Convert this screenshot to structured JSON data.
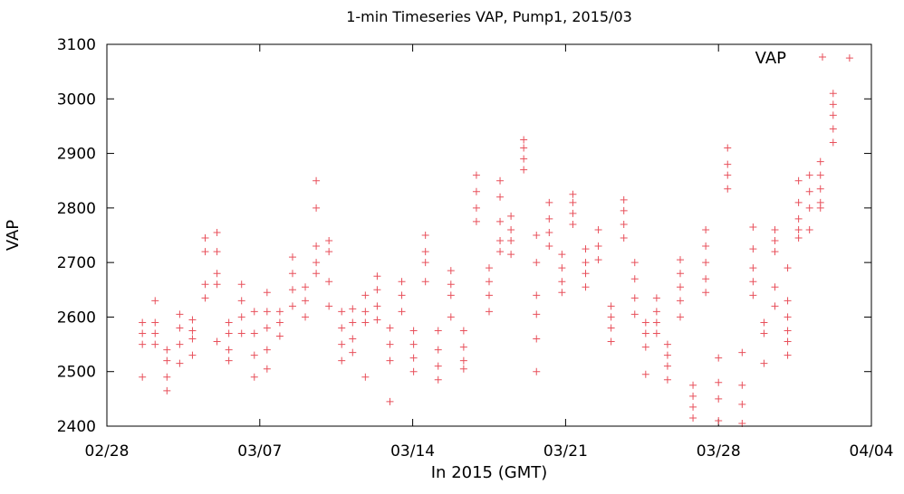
{
  "chart_data": {
    "type": "scatter",
    "title": "1-min Timeseries VAP, Pump1, 2015/03",
    "xlabel": "In 2015 (GMT)",
    "ylabel": "VAP",
    "legend": {
      "position": "top-right",
      "entries": [
        {
          "label": "VAP",
          "marker": "+",
          "color": "#e8505b"
        }
      ]
    },
    "series_color": "#e8505b",
    "grid": false,
    "xlim": [
      "2015-02-28",
      "2015-04-04"
    ],
    "ylim": [
      2400,
      3100
    ],
    "x_ticks": [
      "02/28",
      "03/07",
      "03/14",
      "03/21",
      "03/28",
      "04/04"
    ],
    "y_ticks": [
      "2400",
      "2500",
      "2600",
      "2700",
      "2800",
      "2900",
      "3000",
      "3100"
    ],
    "series": [
      {
        "name": "VAP",
        "points": [
          [
            "2015-03-01 15:00",
            2590
          ],
          [
            "2015-03-01 15:00",
            2570
          ],
          [
            "2015-03-01 15:00",
            2550
          ],
          [
            "2015-03-01 15:00",
            2490
          ],
          [
            "2015-03-02 05:00",
            2630
          ],
          [
            "2015-03-02 05:00",
            2590
          ],
          [
            "2015-03-02 05:00",
            2570
          ],
          [
            "2015-03-02 05:00",
            2550
          ],
          [
            "2015-03-02 18:00",
            2540
          ],
          [
            "2015-03-02 18:00",
            2520
          ],
          [
            "2015-03-02 18:00",
            2490
          ],
          [
            "2015-03-02 18:00",
            2465
          ],
          [
            "2015-03-03 08:00",
            2605
          ],
          [
            "2015-03-03 08:00",
            2580
          ],
          [
            "2015-03-03 08:00",
            2550
          ],
          [
            "2015-03-03 08:00",
            2515
          ],
          [
            "2015-03-03 22:00",
            2595
          ],
          [
            "2015-03-03 22:00",
            2575
          ],
          [
            "2015-03-03 22:00",
            2560
          ],
          [
            "2015-03-03 22:00",
            2530
          ],
          [
            "2015-03-04 12:00",
            2745
          ],
          [
            "2015-03-04 12:00",
            2720
          ],
          [
            "2015-03-04 12:00",
            2660
          ],
          [
            "2015-03-04 12:00",
            2635
          ],
          [
            "2015-03-05 01:00",
            2755
          ],
          [
            "2015-03-05 01:00",
            2720
          ],
          [
            "2015-03-05 01:00",
            2680
          ],
          [
            "2015-03-05 01:00",
            2660
          ],
          [
            "2015-03-05 01:00",
            2555
          ],
          [
            "2015-03-05 14:00",
            2590
          ],
          [
            "2015-03-05 14:00",
            2570
          ],
          [
            "2015-03-05 14:00",
            2540
          ],
          [
            "2015-03-05 14:00",
            2520
          ],
          [
            "2015-03-06 04:00",
            2660
          ],
          [
            "2015-03-06 04:00",
            2630
          ],
          [
            "2015-03-06 04:00",
            2600
          ],
          [
            "2015-03-06 04:00",
            2570
          ],
          [
            "2015-03-06 18:00",
            2610
          ],
          [
            "2015-03-06 18:00",
            2570
          ],
          [
            "2015-03-06 18:00",
            2530
          ],
          [
            "2015-03-06 18:00",
            2490
          ],
          [
            "2015-03-07 08:00",
            2645
          ],
          [
            "2015-03-07 08:00",
            2610
          ],
          [
            "2015-03-07 08:00",
            2580
          ],
          [
            "2015-03-07 08:00",
            2540
          ],
          [
            "2015-03-07 08:00",
            2505
          ],
          [
            "2015-03-07 22:00",
            2610
          ],
          [
            "2015-03-07 22:00",
            2590
          ],
          [
            "2015-03-07 22:00",
            2565
          ],
          [
            "2015-03-08 12:00",
            2710
          ],
          [
            "2015-03-08 12:00",
            2680
          ],
          [
            "2015-03-08 12:00",
            2650
          ],
          [
            "2015-03-08 12:00",
            2620
          ],
          [
            "2015-03-09 02:00",
            2655
          ],
          [
            "2015-03-09 02:00",
            2630
          ],
          [
            "2015-03-09 02:00",
            2600
          ],
          [
            "2015-03-09 14:00",
            2850
          ],
          [
            "2015-03-09 14:00",
            2800
          ],
          [
            "2015-03-09 14:00",
            2730
          ],
          [
            "2015-03-09 14:00",
            2700
          ],
          [
            "2015-03-09 14:00",
            2680
          ],
          [
            "2015-03-10 04:00",
            2740
          ],
          [
            "2015-03-10 04:00",
            2720
          ],
          [
            "2015-03-10 04:00",
            2665
          ],
          [
            "2015-03-10 04:00",
            2620
          ],
          [
            "2015-03-10 18:00",
            2610
          ],
          [
            "2015-03-10 18:00",
            2580
          ],
          [
            "2015-03-10 18:00",
            2550
          ],
          [
            "2015-03-10 18:00",
            2520
          ],
          [
            "2015-03-11 06:00",
            2615
          ],
          [
            "2015-03-11 06:00",
            2590
          ],
          [
            "2015-03-11 06:00",
            2560
          ],
          [
            "2015-03-11 06:00",
            2535
          ],
          [
            "2015-03-11 20:00",
            2640
          ],
          [
            "2015-03-11 20:00",
            2610
          ],
          [
            "2015-03-11 20:00",
            2590
          ],
          [
            "2015-03-11 20:00",
            2490
          ],
          [
            "2015-03-12 09:00",
            2675
          ],
          [
            "2015-03-12 09:00",
            2650
          ],
          [
            "2015-03-12 09:00",
            2620
          ],
          [
            "2015-03-12 09:00",
            2595
          ],
          [
            "2015-03-12 23:00",
            2580
          ],
          [
            "2015-03-12 23:00",
            2550
          ],
          [
            "2015-03-12 23:00",
            2520
          ],
          [
            "2015-03-12 23:00",
            2445
          ],
          [
            "2015-03-13 12:00",
            2665
          ],
          [
            "2015-03-13 12:00",
            2640
          ],
          [
            "2015-03-13 12:00",
            2610
          ],
          [
            "2015-03-14 01:00",
            2575
          ],
          [
            "2015-03-14 01:00",
            2550
          ],
          [
            "2015-03-14 01:00",
            2525
          ],
          [
            "2015-03-14 01:00",
            2500
          ],
          [
            "2015-03-14 14:00",
            2750
          ],
          [
            "2015-03-14 14:00",
            2720
          ],
          [
            "2015-03-14 14:00",
            2700
          ],
          [
            "2015-03-14 14:00",
            2665
          ],
          [
            "2015-03-15 04:00",
            2575
          ],
          [
            "2015-03-15 04:00",
            2540
          ],
          [
            "2015-03-15 04:00",
            2510
          ],
          [
            "2015-03-15 04:00",
            2485
          ],
          [
            "2015-03-15 18:00",
            2685
          ],
          [
            "2015-03-15 18:00",
            2660
          ],
          [
            "2015-03-15 18:00",
            2640
          ],
          [
            "2015-03-15 18:00",
            2600
          ],
          [
            "2015-03-16 08:00",
            2575
          ],
          [
            "2015-03-16 08:00",
            2545
          ],
          [
            "2015-03-16 08:00",
            2520
          ],
          [
            "2015-03-16 08:00",
            2505
          ],
          [
            "2015-03-16 22:00",
            2860
          ],
          [
            "2015-03-16 22:00",
            2830
          ],
          [
            "2015-03-16 22:00",
            2800
          ],
          [
            "2015-03-16 22:00",
            2775
          ],
          [
            "2015-03-17 12:00",
            2690
          ],
          [
            "2015-03-17 12:00",
            2665
          ],
          [
            "2015-03-17 12:00",
            2640
          ],
          [
            "2015-03-17 12:00",
            2610
          ],
          [
            "2015-03-18 00:00",
            2850
          ],
          [
            "2015-03-18 00:00",
            2820
          ],
          [
            "2015-03-18 00:00",
            2775
          ],
          [
            "2015-03-18 00:00",
            2740
          ],
          [
            "2015-03-18 00:00",
            2720
          ],
          [
            "2015-03-18 12:00",
            2785
          ],
          [
            "2015-03-18 12:00",
            2760
          ],
          [
            "2015-03-18 12:00",
            2740
          ],
          [
            "2015-03-18 12:00",
            2715
          ],
          [
            "2015-03-19 02:00",
            2925
          ],
          [
            "2015-03-19 02:00",
            2910
          ],
          [
            "2015-03-19 02:00",
            2890
          ],
          [
            "2015-03-19 02:00",
            2870
          ],
          [
            "2015-03-19 16:00",
            2750
          ],
          [
            "2015-03-19 16:00",
            2700
          ],
          [
            "2015-03-19 16:00",
            2640
          ],
          [
            "2015-03-19 16:00",
            2605
          ],
          [
            "2015-03-19 16:00",
            2560
          ],
          [
            "2015-03-19 16:00",
            2500
          ],
          [
            "2015-03-20 06:00",
            2810
          ],
          [
            "2015-03-20 06:00",
            2780
          ],
          [
            "2015-03-20 06:00",
            2755
          ],
          [
            "2015-03-20 06:00",
            2730
          ],
          [
            "2015-03-20 20:00",
            2715
          ],
          [
            "2015-03-20 20:00",
            2690
          ],
          [
            "2015-03-20 20:00",
            2665
          ],
          [
            "2015-03-20 20:00",
            2645
          ],
          [
            "2015-03-21 08:00",
            2825
          ],
          [
            "2015-03-21 08:00",
            2810
          ],
          [
            "2015-03-21 08:00",
            2790
          ],
          [
            "2015-03-21 08:00",
            2770
          ],
          [
            "2015-03-21 22:00",
            2725
          ],
          [
            "2015-03-21 22:00",
            2700
          ],
          [
            "2015-03-21 22:00",
            2680
          ],
          [
            "2015-03-21 22:00",
            2655
          ],
          [
            "2015-03-22 12:00",
            2760
          ],
          [
            "2015-03-22 12:00",
            2730
          ],
          [
            "2015-03-22 12:00",
            2705
          ],
          [
            "2015-03-23 02:00",
            2620
          ],
          [
            "2015-03-23 02:00",
            2600
          ],
          [
            "2015-03-23 02:00",
            2580
          ],
          [
            "2015-03-23 02:00",
            2555
          ],
          [
            "2015-03-23 16:00",
            2815
          ],
          [
            "2015-03-23 16:00",
            2795
          ],
          [
            "2015-03-23 16:00",
            2770
          ],
          [
            "2015-03-23 16:00",
            2745
          ],
          [
            "2015-03-24 04:00",
            2700
          ],
          [
            "2015-03-24 04:00",
            2670
          ],
          [
            "2015-03-24 04:00",
            2635
          ],
          [
            "2015-03-24 04:00",
            2605
          ],
          [
            "2015-03-24 16:00",
            2590
          ],
          [
            "2015-03-24 16:00",
            2570
          ],
          [
            "2015-03-24 16:00",
            2545
          ],
          [
            "2015-03-24 16:00",
            2495
          ],
          [
            "2015-03-25 04:00",
            2635
          ],
          [
            "2015-03-25 04:00",
            2610
          ],
          [
            "2015-03-25 04:00",
            2590
          ],
          [
            "2015-03-25 04:00",
            2570
          ],
          [
            "2015-03-25 16:00",
            2550
          ],
          [
            "2015-03-25 16:00",
            2530
          ],
          [
            "2015-03-25 16:00",
            2510
          ],
          [
            "2015-03-25 16:00",
            2485
          ],
          [
            "2015-03-26 06:00",
            2705
          ],
          [
            "2015-03-26 06:00",
            2680
          ],
          [
            "2015-03-26 06:00",
            2655
          ],
          [
            "2015-03-26 06:00",
            2630
          ],
          [
            "2015-03-26 06:00",
            2600
          ],
          [
            "2015-03-26 20:00",
            2475
          ],
          [
            "2015-03-26 20:00",
            2455
          ],
          [
            "2015-03-26 20:00",
            2435
          ],
          [
            "2015-03-26 20:00",
            2415
          ],
          [
            "2015-03-27 10:00",
            2760
          ],
          [
            "2015-03-27 10:00",
            2730
          ],
          [
            "2015-03-27 10:00",
            2700
          ],
          [
            "2015-03-27 10:00",
            2670
          ],
          [
            "2015-03-27 10:00",
            2645
          ],
          [
            "2015-03-28 00:00",
            2525
          ],
          [
            "2015-03-28 00:00",
            2480
          ],
          [
            "2015-03-28 00:00",
            2450
          ],
          [
            "2015-03-28 00:00",
            2410
          ],
          [
            "2015-03-28 10:00",
            2910
          ],
          [
            "2015-03-28 10:00",
            2880
          ],
          [
            "2015-03-28 10:00",
            2860
          ],
          [
            "2015-03-28 10:00",
            2835
          ],
          [
            "2015-03-29 02:00",
            2535
          ],
          [
            "2015-03-29 02:00",
            2475
          ],
          [
            "2015-03-29 02:00",
            2440
          ],
          [
            "2015-03-29 02:00",
            2405
          ],
          [
            "2015-03-29 14:00",
            2765
          ],
          [
            "2015-03-29 14:00",
            2725
          ],
          [
            "2015-03-29 14:00",
            2690
          ],
          [
            "2015-03-29 14:00",
            2665
          ],
          [
            "2015-03-29 14:00",
            2640
          ],
          [
            "2015-03-30 02:00",
            2590
          ],
          [
            "2015-03-30 02:00",
            2570
          ],
          [
            "2015-03-30 02:00",
            2515
          ],
          [
            "2015-03-30 14:00",
            2760
          ],
          [
            "2015-03-30 14:00",
            2740
          ],
          [
            "2015-03-30 14:00",
            2720
          ],
          [
            "2015-03-30 14:00",
            2655
          ],
          [
            "2015-03-30 14:00",
            2620
          ],
          [
            "2015-03-31 04:00",
            2690
          ],
          [
            "2015-03-31 04:00",
            2630
          ],
          [
            "2015-03-31 04:00",
            2600
          ],
          [
            "2015-03-31 04:00",
            2575
          ],
          [
            "2015-03-31 04:00",
            2555
          ],
          [
            "2015-03-31 04:00",
            2530
          ],
          [
            "2015-03-31 16:00",
            2850
          ],
          [
            "2015-03-31 16:00",
            2810
          ],
          [
            "2015-03-31 16:00",
            2780
          ],
          [
            "2015-03-31 16:00",
            2760
          ],
          [
            "2015-03-31 16:00",
            2745
          ],
          [
            "2015-04-01 04:00",
            2860
          ],
          [
            "2015-04-01 04:00",
            2830
          ],
          [
            "2015-04-01 04:00",
            2800
          ],
          [
            "2015-04-01 04:00",
            2760
          ],
          [
            "2015-04-01 16:00",
            2885
          ],
          [
            "2015-04-01 16:00",
            2860
          ],
          [
            "2015-04-01 16:00",
            2835
          ],
          [
            "2015-04-01 16:00",
            2810
          ],
          [
            "2015-04-01 16:00",
            2800
          ],
          [
            "2015-04-02 06:00",
            3010
          ],
          [
            "2015-04-02 06:00",
            2990
          ],
          [
            "2015-04-02 06:00",
            2970
          ],
          [
            "2015-04-02 06:00",
            2945
          ],
          [
            "2015-04-02 06:00",
            2920
          ],
          [
            "2015-04-03 00:00",
            3075
          ]
        ]
      }
    ]
  }
}
